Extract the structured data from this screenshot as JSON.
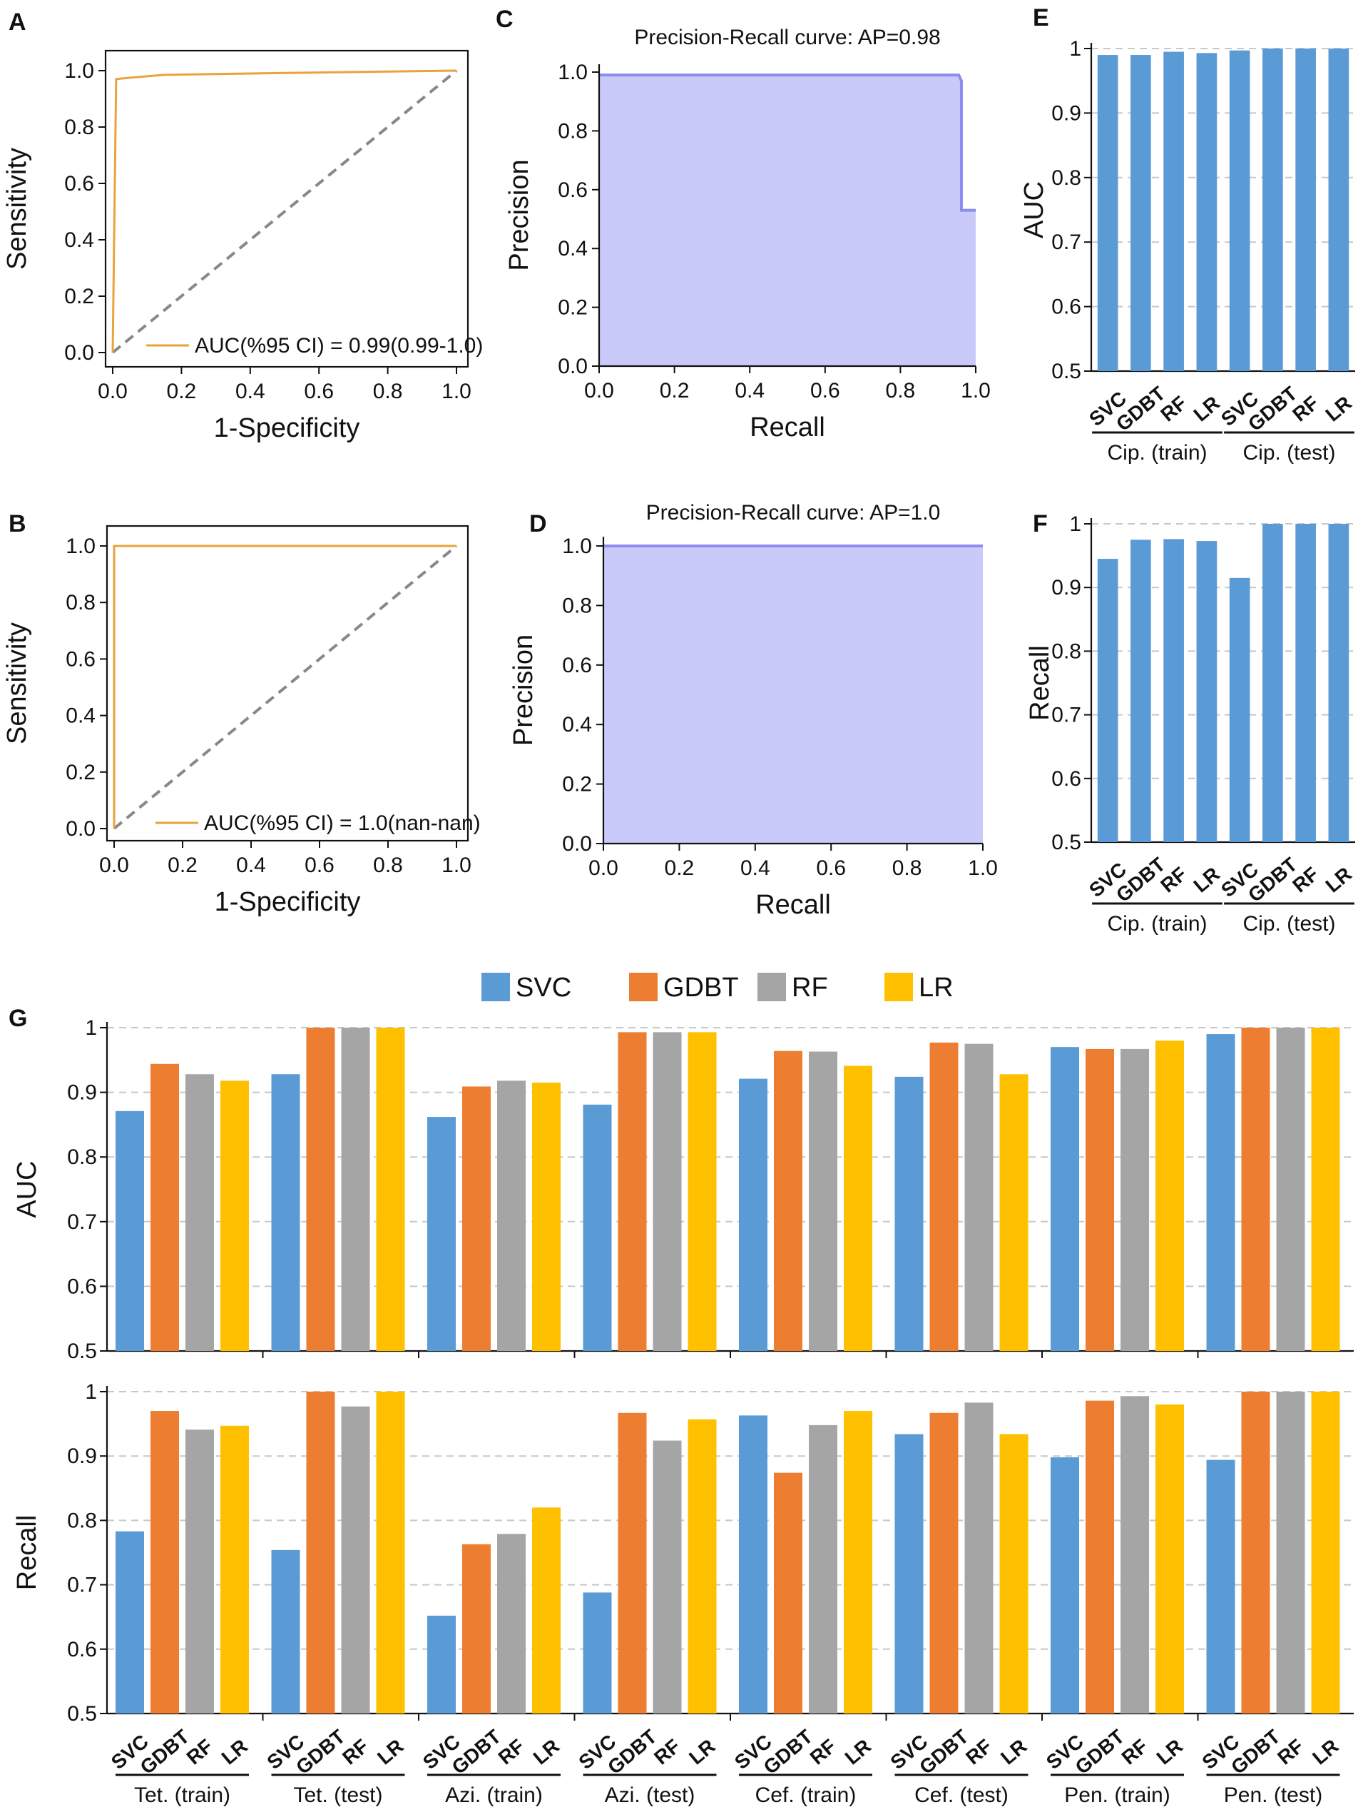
{
  "colors": {
    "SVC": "#5B9BD5",
    "GDBT": "#ED7D31",
    "RF": "#A5A5A5",
    "LR": "#FFC000",
    "roc": "#E8A33C",
    "pr_line": "#8C8CF0",
    "pr_fill": "#CACAFA",
    "diag": "#888888"
  },
  "panels": {
    "A": {
      "label": "A",
      "type": "roc",
      "xlabel": "1-Specificity",
      "ylabel": "Sensitivity",
      "legend": "AUC(%95 CI) = 0.99(0.99-1.0)",
      "ticks": [
        "0.0",
        "0.2",
        "0.4",
        "0.6",
        "0.8",
        "1.0"
      ],
      "curve": [
        [
          0,
          0
        ],
        [
          0.01,
          0.97
        ],
        [
          0.05,
          0.975
        ],
        [
          0.15,
          0.985
        ],
        [
          0.4,
          0.99
        ],
        [
          1,
          1
        ]
      ]
    },
    "B": {
      "label": "B",
      "type": "roc",
      "xlabel": "1-Specificity",
      "ylabel": "Sensitivity",
      "legend": "AUC(%95 CI) = 1.0(nan-nan)",
      "ticks": [
        "0.0",
        "0.2",
        "0.4",
        "0.6",
        "0.8",
        "1.0"
      ],
      "curve": [
        [
          0,
          0
        ],
        [
          0,
          1
        ],
        [
          1,
          1
        ]
      ]
    },
    "C": {
      "label": "C",
      "type": "pr",
      "title": "Precision-Recall curve: AP=0.98",
      "xlabel": "Recall",
      "ylabel": "Precision",
      "ticks": [
        "0.0",
        "0.2",
        "0.4",
        "0.6",
        "0.8",
        "1.0"
      ],
      "curve": [
        [
          0,
          0.99
        ],
        [
          0.955,
          0.99
        ],
        [
          0.962,
          0.97
        ],
        [
          0.962,
          0.53
        ],
        [
          1,
          0.53
        ]
      ]
    },
    "D": {
      "label": "D",
      "type": "pr",
      "title": "Precision-Recall curve: AP=1.0",
      "xlabel": "Recall",
      "ylabel": "Precision",
      "ticks": [
        "0.0",
        "0.2",
        "0.4",
        "0.6",
        "0.8",
        "1.0"
      ],
      "curve": [
        [
          0,
          1
        ],
        [
          1,
          1
        ]
      ]
    },
    "E": {
      "label": "E",
      "type": "bar",
      "ylabel": "AUC",
      "ylim": [
        0.5,
        1
      ],
      "yticks": [
        "0.5",
        "0.6",
        "0.7",
        "0.8",
        "0.9",
        "1"
      ],
      "categories": [
        "SVC",
        "GDBT",
        "RF",
        "LR",
        "SVC",
        "GDBT",
        "RF",
        "LR"
      ],
      "groups": [
        "Cip. (train)",
        "Cip. (test)"
      ],
      "values": [
        0.99,
        0.99,
        0.995,
        0.993,
        0.997,
        1.0,
        1.0,
        1.0
      ]
    },
    "F": {
      "label": "F",
      "type": "bar",
      "ylabel": "Recall",
      "ylim": [
        0.5,
        1
      ],
      "yticks": [
        "0.5",
        "0.6",
        "0.7",
        "0.8",
        "0.9",
        "1"
      ],
      "categories": [
        "SVC",
        "GDBT",
        "RF",
        "LR",
        "SVC",
        "GDBT",
        "RF",
        "LR"
      ],
      "groups": [
        "Cip. (train)",
        "Cip. (test)"
      ],
      "values": [
        0.945,
        0.975,
        0.976,
        0.973,
        0.915,
        1.0,
        1.0,
        1.0
      ]
    }
  },
  "panel_G": {
    "label": "G",
    "legend": [
      "SVC",
      "GDBT",
      "RF",
      "LR"
    ],
    "categories": [
      "SVC",
      "GDBT",
      "RF",
      "LR"
    ],
    "groups": [
      "Tet. (train)",
      "Tet. (test)",
      "Azi. (train)",
      "Azi. (test)",
      "Cef. (train)",
      "Cef. (test)",
      "Pen. (train)",
      "Pen. (test)"
    ],
    "yticks": [
      "0.5",
      "0.6",
      "0.7",
      "0.8",
      "0.9",
      "1"
    ],
    "auc": {
      "ylabel": "AUC",
      "ylim": [
        0.5,
        1
      ],
      "values": [
        [
          0.871,
          0.944,
          0.928,
          0.918
        ],
        [
          0.928,
          1.0,
          1.0,
          1.0
        ],
        [
          0.862,
          0.909,
          0.918,
          0.915
        ],
        [
          0.881,
          0.993,
          0.993,
          0.993
        ],
        [
          0.921,
          0.964,
          0.963,
          0.941
        ],
        [
          0.924,
          0.977,
          0.975,
          0.928
        ],
        [
          0.97,
          0.967,
          0.967,
          0.98
        ],
        [
          0.99,
          1.0,
          1.0,
          1.0
        ]
      ]
    },
    "recall": {
      "ylabel": "Recall",
      "ylim": [
        0.5,
        1
      ],
      "values": [
        [
          0.783,
          0.97,
          0.941,
          0.947
        ],
        [
          0.754,
          1.0,
          0.977,
          1.0
        ],
        [
          0.652,
          0.763,
          0.779,
          0.82
        ],
        [
          0.688,
          0.967,
          0.924,
          0.957
        ],
        [
          0.963,
          0.874,
          0.948,
          0.97
        ],
        [
          0.934,
          0.967,
          0.983,
          0.934
        ],
        [
          0.898,
          0.986,
          0.993,
          0.98
        ],
        [
          0.894,
          1.0,
          1.0,
          1.0
        ]
      ]
    }
  }
}
